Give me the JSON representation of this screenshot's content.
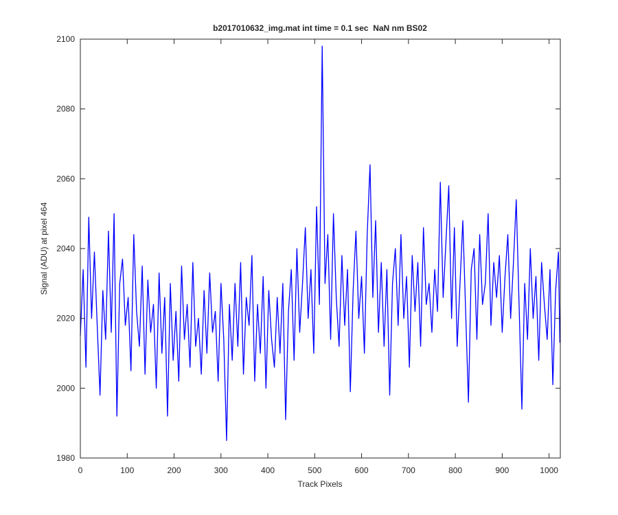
{
  "chart_data": {
    "type": "line",
    "title": "b2017010632_img.mat int time = 0.1 sec  NaN nm BS02",
    "x_label": "Track Pixels",
    "y_label": "Signal (ADU) at pixel 464",
    "color": "#0000ff",
    "xlim": [
      0,
      1024
    ],
    "ylim": [
      1980,
      2100
    ],
    "xticks": [
      0,
      100,
      200,
      300,
      400,
      500,
      600,
      700,
      800,
      900,
      1000
    ],
    "yticks": [
      1980,
      2000,
      2020,
      2040,
      2060,
      2080,
      2100
    ],
    "grid": false,
    "x": [
      0,
      6,
      12,
      18,
      24,
      30,
      36,
      42,
      48,
      54,
      60,
      66,
      72,
      78,
      84,
      90,
      96,
      102,
      108,
      114,
      120,
      126,
      132,
      138,
      144,
      150,
      156,
      162,
      168,
      174,
      180,
      186,
      192,
      198,
      204,
      210,
      216,
      222,
      228,
      234,
      240,
      246,
      252,
      258,
      264,
      270,
      276,
      282,
      288,
      294,
      300,
      306,
      312,
      318,
      324,
      330,
      336,
      342,
      348,
      354,
      360,
      366,
      372,
      378,
      384,
      390,
      396,
      402,
      408,
      414,
      420,
      426,
      432,
      438,
      444,
      450,
      456,
      462,
      468,
      474,
      480,
      486,
      492,
      498,
      504,
      510,
      516,
      522,
      528,
      534,
      540,
      546,
      552,
      558,
      564,
      570,
      576,
      582,
      588,
      594,
      600,
      606,
      612,
      618,
      624,
      630,
      636,
      642,
      648,
      654,
      660,
      666,
      672,
      678,
      684,
      690,
      696,
      702,
      708,
      714,
      720,
      726,
      732,
      738,
      744,
      750,
      756,
      762,
      768,
      774,
      780,
      786,
      792,
      798,
      804,
      810,
      816,
      822,
      828,
      834,
      840,
      846,
      852,
      858,
      864,
      870,
      876,
      882,
      888,
      894,
      900,
      906,
      912,
      918,
      924,
      930,
      936,
      942,
      948,
      954,
      960,
      966,
      972,
      978,
      984,
      990,
      996,
      1002,
      1008,
      1014,
      1020,
      1023
    ],
    "values": [
      2015,
      2034,
      2006,
      2049,
      2020,
      2039,
      2018,
      1998,
      2028,
      2014,
      2045,
      2016,
      2050,
      1992,
      2030,
      2037,
      2018,
      2026,
      2005,
      2044,
      2022,
      2012,
      2035,
      2004,
      2031,
      2016,
      2024,
      2000,
      2033,
      2010,
      2026,
      1992,
      2030,
      2008,
      2022,
      2002,
      2035,
      2014,
      2024,
      2006,
      2036,
      2012,
      2020,
      2004,
      2028,
      2010,
      2033,
      2016,
      2022,
      2002,
      2030,
      2014,
      1985,
      2024,
      2008,
      2030,
      2012,
      2036,
      2004,
      2026,
      2018,
      2038,
      2002,
      2024,
      2010,
      2032,
      2000,
      2028,
      2014,
      2006,
      2026,
      2010,
      2030,
      1991,
      2022,
      2034,
      2008,
      2040,
      2016,
      2030,
      2046,
      2020,
      2034,
      2010,
      2052,
      2024,
      2098,
      2030,
      2044,
      2014,
      2050,
      2026,
      2012,
      2038,
      2018,
      2034,
      1999,
      2028,
      2045,
      2020,
      2032,
      2010,
      2044,
      2064,
      2026,
      2048,
      2016,
      2036,
      2012,
      2034,
      1998,
      2030,
      2040,
      2018,
      2044,
      2020,
      2032,
      2006,
      2038,
      2022,
      2036,
      2012,
      2046,
      2024,
      2030,
      2016,
      2034,
      2022,
      2059,
      2026,
      2042,
      2058,
      2020,
      2046,
      2012,
      2030,
      2048,
      2022,
      1996,
      2034,
      2040,
      2014,
      2044,
      2024,
      2030,
      2050,
      2018,
      2036,
      2026,
      2038,
      2016,
      2032,
      2044,
      2020,
      2036,
      2054,
      2024,
      1994,
      2030,
      2014,
      2040,
      2020,
      2032,
      2008,
      2036,
      2024,
      2014,
      2034,
      2001,
      2028,
      2039,
      2013
    ]
  }
}
